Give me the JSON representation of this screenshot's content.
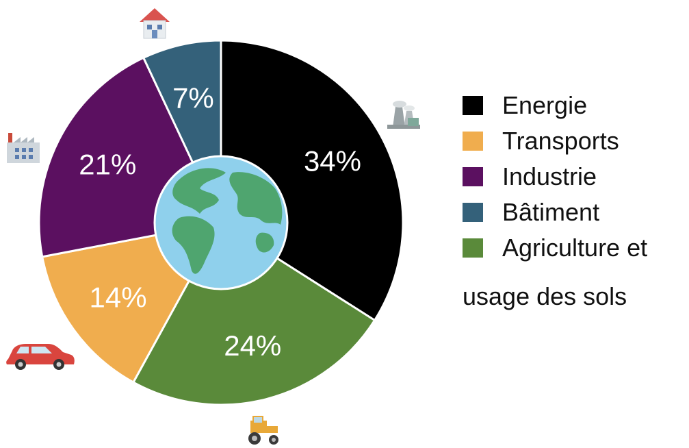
{
  "colors": {
    "energie": "#000000",
    "transports": "#F0AD4E",
    "industrie": "#5B1060",
    "batiment": "#34617A",
    "agriculture": "#5A8A3A",
    "globe_ocean": "#8FD0EC",
    "globe_land": "#4FA56F"
  },
  "chart_data": {
    "type": "pie",
    "categories": [
      "Energie",
      "Transports",
      "Industrie",
      "Bâtiment",
      "Agriculture et usage des sols"
    ],
    "values": [
      34,
      14,
      21,
      7,
      24
    ],
    "data_labels": [
      "34%",
      "14%",
      "21%",
      "7%",
      "24%"
    ],
    "slice_order_clockwise_from_top": [
      "Energie",
      "Agriculture et usage des sols",
      "Transports",
      "Industrie",
      "Bâtiment"
    ],
    "legend_position": "right",
    "icons": [
      "power-plant-icon",
      "tractor-icon",
      "car-icon",
      "factory-icon",
      "house-icon"
    ]
  },
  "legend": {
    "items": [
      {
        "label": "Energie",
        "color_key": "energie"
      },
      {
        "label": "Transports",
        "color_key": "transports"
      },
      {
        "label": "Industrie",
        "color_key": "industrie"
      },
      {
        "label": "Bâtiment",
        "color_key": "batiment"
      },
      {
        "label": "Agriculture et",
        "color_key": "agriculture"
      }
    ],
    "continuation": "usage des sols"
  }
}
